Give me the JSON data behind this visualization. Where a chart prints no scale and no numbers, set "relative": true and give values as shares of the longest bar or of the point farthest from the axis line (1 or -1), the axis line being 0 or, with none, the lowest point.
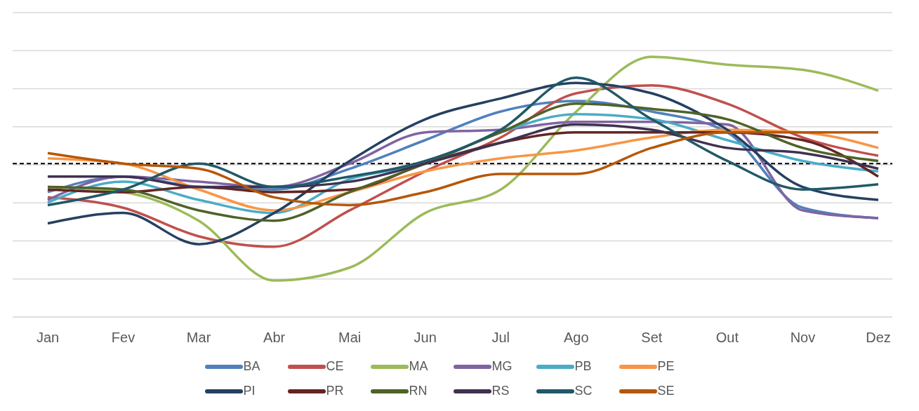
{
  "chart_data": {
    "type": "line",
    "relative": true,
    "grid": "y",
    "legend": "bottom",
    "marker": "none",
    "line_style": "solid",
    "categories": [
      "Jan",
      "Fev",
      "Mar",
      "Abr",
      "Mai",
      "Jun",
      "Jul",
      "Ago",
      "Set",
      "Out",
      "Nov",
      "Dez"
    ],
    "ref_lines": [
      {
        "axis": "y",
        "value": 0.59,
        "color": "#000000",
        "line_style": "dashed"
      }
    ],
    "series": [
      {
        "name": "BA",
        "color": "#4f81bd",
        "values": [
          0.48,
          0.54,
          0.5,
          0.49,
          0.57,
          0.68,
          0.79,
          0.83,
          0.79,
          0.71,
          0.42,
          0.38
        ]
      },
      {
        "name": "CE",
        "color": "#c0504d",
        "values": [
          0.46,
          0.42,
          0.31,
          0.27,
          0.41,
          0.56,
          0.69,
          0.86,
          0.89,
          0.82,
          0.69,
          0.62
        ]
      },
      {
        "name": "MA",
        "color": "#9bbb59",
        "values": [
          0.5,
          0.48,
          0.37,
          0.14,
          0.19,
          0.4,
          0.49,
          0.79,
          1.0,
          0.97,
          0.95,
          0.87
        ]
      },
      {
        "name": "MG",
        "color": "#8064a2",
        "values": [
          0.45,
          0.54,
          0.52,
          0.5,
          0.59,
          0.71,
          0.72,
          0.75,
          0.75,
          0.74,
          0.41,
          0.38
        ]
      },
      {
        "name": "PB",
        "color": "#4bacc6",
        "values": [
          0.44,
          0.52,
          0.45,
          0.4,
          0.53,
          0.59,
          0.71,
          0.78,
          0.76,
          0.68,
          0.6,
          0.56
        ]
      },
      {
        "name": "PE",
        "color": "#f79646",
        "values": [
          0.61,
          0.59,
          0.49,
          0.41,
          0.48,
          0.56,
          0.61,
          0.64,
          0.69,
          0.72,
          0.71,
          0.65
        ]
      },
      {
        "name": "PI",
        "color": "#254061",
        "values": [
          0.36,
          0.4,
          0.28,
          0.4,
          0.6,
          0.76,
          0.84,
          0.9,
          0.86,
          0.72,
          0.5,
          0.45
        ]
      },
      {
        "name": "PR",
        "color": "#632523",
        "values": [
          0.49,
          0.48,
          0.5,
          0.48,
          0.49,
          0.59,
          0.67,
          0.71,
          0.71,
          0.71,
          0.68,
          0.54
        ]
      },
      {
        "name": "RN",
        "color": "#4f6228",
        "values": [
          0.5,
          0.49,
          0.41,
          0.37,
          0.48,
          0.59,
          0.71,
          0.82,
          0.8,
          0.76,
          0.65,
          0.6
        ]
      },
      {
        "name": "RS",
        "color": "#3f3151",
        "values": [
          0.54,
          0.54,
          0.5,
          0.5,
          0.52,
          0.59,
          0.67,
          0.74,
          0.72,
          0.65,
          0.63,
          0.57
        ]
      },
      {
        "name": "SC",
        "color": "#215968",
        "values": [
          0.43,
          0.49,
          0.59,
          0.5,
          0.54,
          0.6,
          0.72,
          0.92,
          0.76,
          0.6,
          0.49,
          0.51
        ]
      },
      {
        "name": "SE",
        "color": "#b65708",
        "values": [
          0.63,
          0.59,
          0.57,
          0.46,
          0.43,
          0.48,
          0.55,
          0.55,
          0.65,
          0.71,
          0.71,
          0.71
        ]
      }
    ]
  }
}
